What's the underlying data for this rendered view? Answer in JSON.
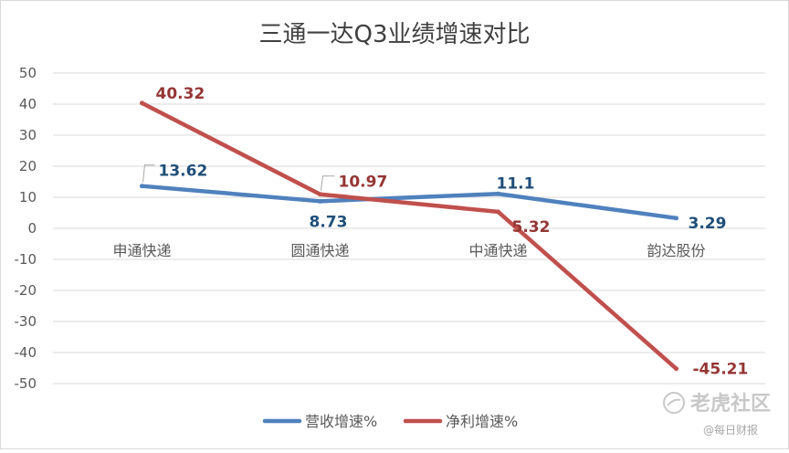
{
  "chart_data": {
    "type": "line",
    "title": "三通一达Q3业绩增速对比",
    "categories": [
      "申通快递",
      "圆通快递",
      "中通快递",
      "韵达股份"
    ],
    "ylim": [
      -50,
      50
    ],
    "yticks": [
      50,
      40,
      30,
      20,
      10,
      0,
      -10,
      -20,
      -30,
      -40,
      -50
    ],
    "grid": true,
    "legend_position": "bottom",
    "series": [
      {
        "name": "营收增速%",
        "color": "#4f81bd",
        "label_color": "#1f4e79",
        "values": [
          13.62,
          8.73,
          11.1,
          3.29
        ],
        "labels": [
          "13.62",
          "8.73",
          "11.1",
          "3.29"
        ]
      },
      {
        "name": "净利增速%",
        "color": "#c0504d",
        "label_color": "#943634",
        "values": [
          40.32,
          10.97,
          5.32,
          -45.21
        ],
        "labels": [
          "40.32",
          "10.97",
          "5.32",
          "-45.21"
        ]
      }
    ]
  },
  "watermark": {
    "brand": "老虎社区",
    "source": "@每日财报"
  }
}
